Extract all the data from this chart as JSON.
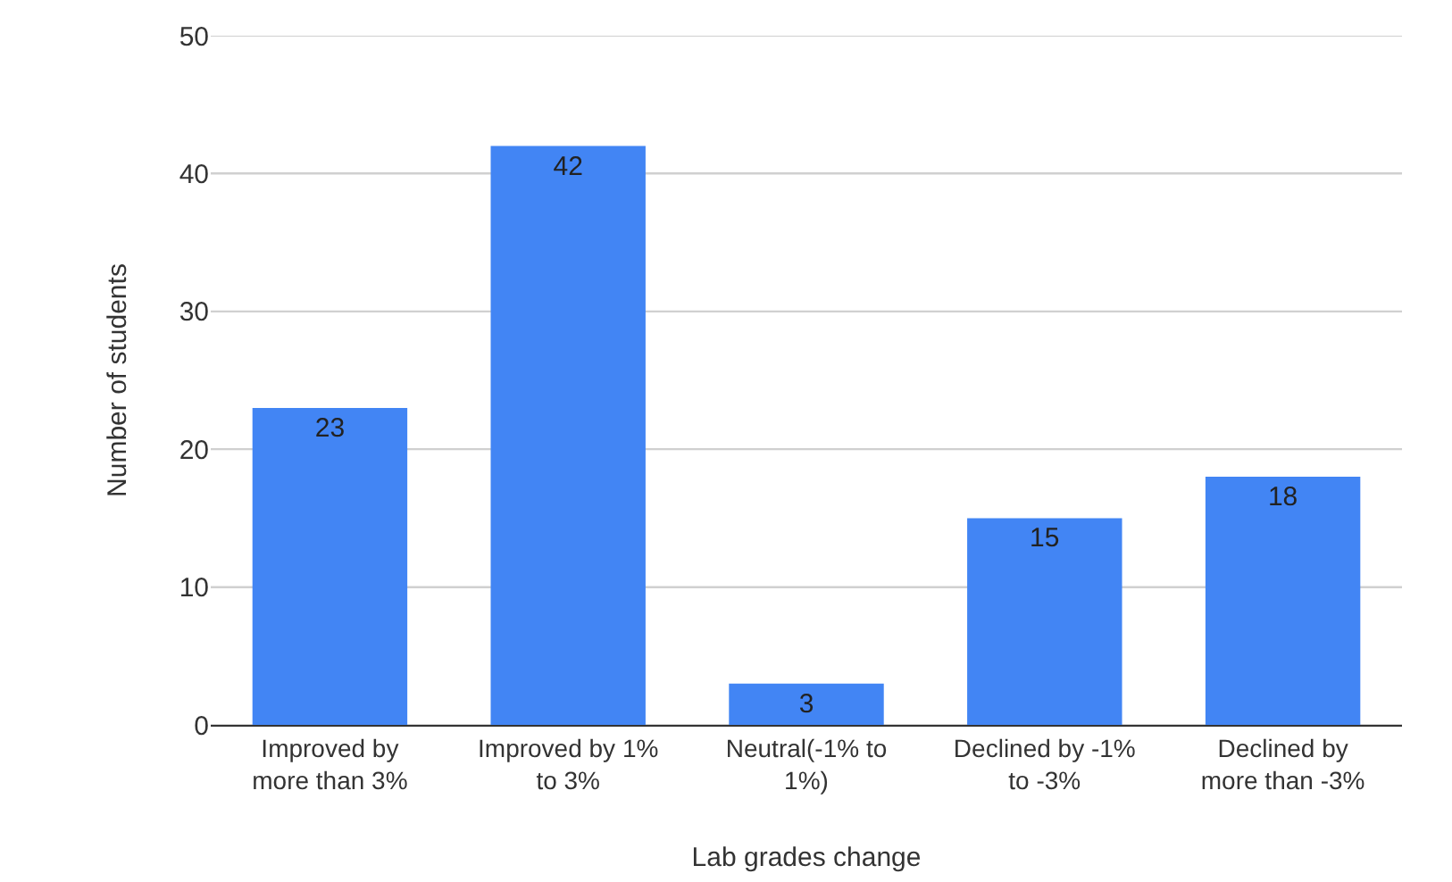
{
  "chart_data": {
    "type": "bar",
    "xlabel": "Lab grades change",
    "ylabel": "Number of students",
    "categories": [
      "Improved by more than 3%",
      "Improved by 1% to 3%",
      "Neutral(-1% to 1%)",
      "Declined by -1% to -3%",
      "Declined by more than -3%"
    ],
    "values": [
      23,
      42,
      3,
      15,
      18
    ],
    "color": "#4285f4",
    "data_labels": true,
    "ylim": [
      0,
      50
    ],
    "yticks": [
      0,
      10,
      20,
      30,
      40,
      50
    ],
    "grid": "y"
  }
}
